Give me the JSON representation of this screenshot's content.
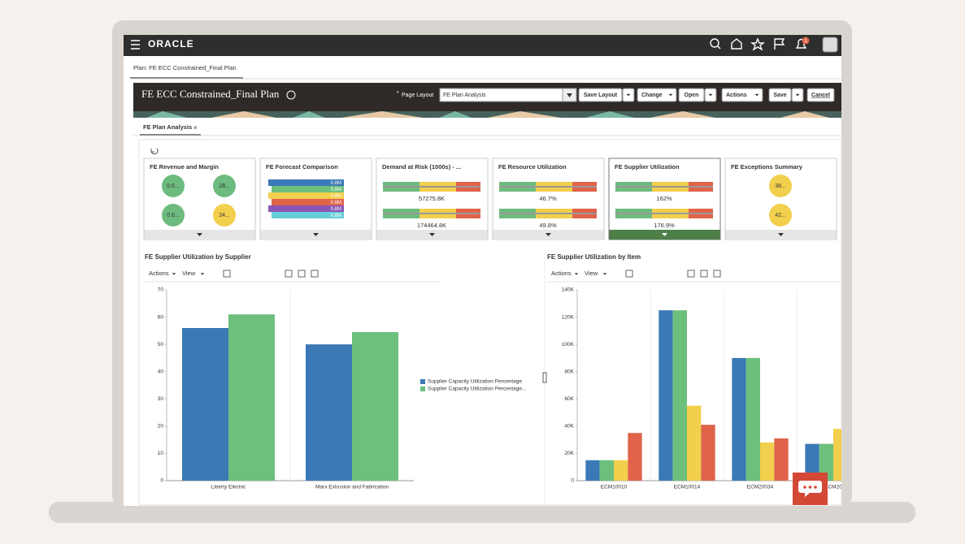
{
  "app": {
    "brand": "ORACLE",
    "notification_count": 1
  },
  "breadcrumb": "Plan: FE ECC Constrained_Final Plan",
  "header": {
    "title": "FE ECC Constrained_Final Plan",
    "required_mark": "*",
    "page_layout_label": "Page Layout",
    "page_layout_value": "FE Plan Analysis",
    "buttons": [
      "Save Layout",
      "Change",
      "Open",
      "Actions",
      "Save",
      "Cancel"
    ]
  },
  "tab": "FE Plan Analysis",
  "tiles": [
    {
      "title": "FE Revenue and Margin",
      "kind": "circles",
      "labels": [
        "0.6...",
        "28...",
        "0.6...",
        "24..."
      ],
      "colors": [
        "#6dbb7e",
        "#6dbb7e",
        "#6dbb7e",
        "#f2cf4c"
      ]
    },
    {
      "title": "FE Forecast Comparison",
      "kind": "stack",
      "labels": [
        "0.8M",
        "0.8M",
        "0.8M",
        "0.8M",
        "0.8M",
        "0.8M"
      ],
      "colors": [
        "#3a79b5",
        "#6cc07c",
        "#f2cf4c",
        "#e0634a",
        "#8b55b5",
        "#67cfd8"
      ]
    },
    {
      "title": "Demand at Risk (1000s) - ...",
      "kind": "bullet",
      "labels": [
        "57275.8K",
        "174464.8K"
      ]
    },
    {
      "title": "FE Resource Utilization",
      "kind": "bullet",
      "labels": [
        "46.7%",
        "49.8%"
      ]
    },
    {
      "title": "FE Supplier Utilization",
      "kind": "bullet",
      "labels": [
        "162%",
        "176.9%"
      ],
      "selected": true
    },
    {
      "title": "FE Exceptions Summary",
      "kind": "circles",
      "labels": [
        "38...",
        "42..."
      ],
      "colors": [
        "#f2cf4c",
        "#f2cf4c"
      ]
    }
  ],
  "toolbars": [
    [
      "Actions",
      "View"
    ],
    [
      "Actions",
      "View"
    ]
  ],
  "chart_data": [
    {
      "type": "bar",
      "title": "FE Supplier Utilization by Supplier",
      "categories": [
        "Liberty Electric",
        "Marx Extrusion and Fabrication"
      ],
      "series": [
        {
          "name": "Supplier Capacity Utilization Percentage",
          "color": "#3a79b5",
          "values": [
            56,
            50
          ]
        },
        {
          "name": "Supplier Capacity Utilization Percentage...",
          "color": "#6cc07c",
          "values": [
            61,
            54.5
          ]
        }
      ],
      "ylim": [
        0,
        70
      ],
      "yticks": [
        0,
        10,
        20,
        30,
        40,
        50,
        60,
        70
      ],
      "legend": "right"
    },
    {
      "type": "bar",
      "title": "FE Supplier Utilization by Item",
      "categories": [
        "ECM10010",
        "ECM10014",
        "ECM20034",
        "ECM20"
      ],
      "series": [
        {
          "color": "#3a79b5",
          "values": [
            15000,
            125000,
            90000,
            27000
          ]
        },
        {
          "color": "#6cc07c",
          "values": [
            15000,
            125000,
            90000,
            27000
          ]
        },
        {
          "color": "#f2cf4c",
          "values": [
            15000,
            55000,
            28000,
            38000
          ]
        },
        {
          "color": "#e0634a",
          "values": [
            35000,
            41000,
            31000,
            null
          ]
        }
      ],
      "ylim": [
        0,
        140000
      ],
      "yticks": [
        0,
        {
          "value": 20000,
          "label": "20K"
        },
        {
          "value": 40000,
          "label": "40K"
        },
        {
          "value": 60000,
          "label": "60K"
        },
        {
          "value": 80000,
          "label": "80K"
        },
        {
          "value": 100000,
          "label": "100K"
        },
        {
          "value": 120000,
          "label": "120K"
        },
        {
          "value": 140000,
          "label": "140K"
        }
      ]
    }
  ]
}
